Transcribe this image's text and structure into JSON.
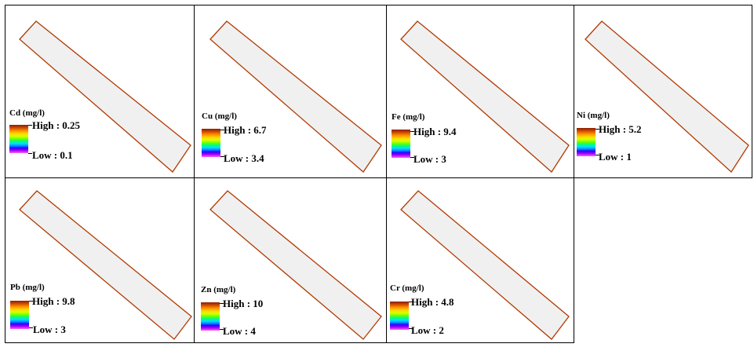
{
  "panels": [
    {
      "id": "cd",
      "title": "Cd (mg/l)",
      "high": "High : 0.25",
      "low": "Low : 0.1"
    },
    {
      "id": "cu",
      "title": "Cu (mg/l)",
      "high": "High : 6.7",
      "low": "Low : 3.4"
    },
    {
      "id": "fe",
      "title": "Fe (mg/l)",
      "high": "High : 9.4",
      "low": "Low : 3"
    },
    {
      "id": "ni",
      "title": "Ni (mg/l)",
      "high": "High : 5.2",
      "low": "Low : 1"
    },
    {
      "id": "pb",
      "title": "Pb (mg/l)",
      "high": "High : 9.8",
      "low": "Low : 3"
    },
    {
      "id": "zn",
      "title": "Zn (mg/l)",
      "high": "High : 10",
      "low": "Low : 4"
    },
    {
      "id": "cr",
      "title": "Cr (mg/l)",
      "high": "High : 4.8",
      "low": "Low : 2"
    }
  ],
  "colors": {
    "shape_fill": "#f0f0f0",
    "shape_stroke": "#b03a00",
    "border": "#000000"
  },
  "legend_ramp": [
    "#8b1a00",
    "#ff8a00",
    "#ffd200",
    "#6cff00",
    "#00e0ff",
    "#0090ff",
    "#3000ff",
    "#ff60ff"
  ]
}
